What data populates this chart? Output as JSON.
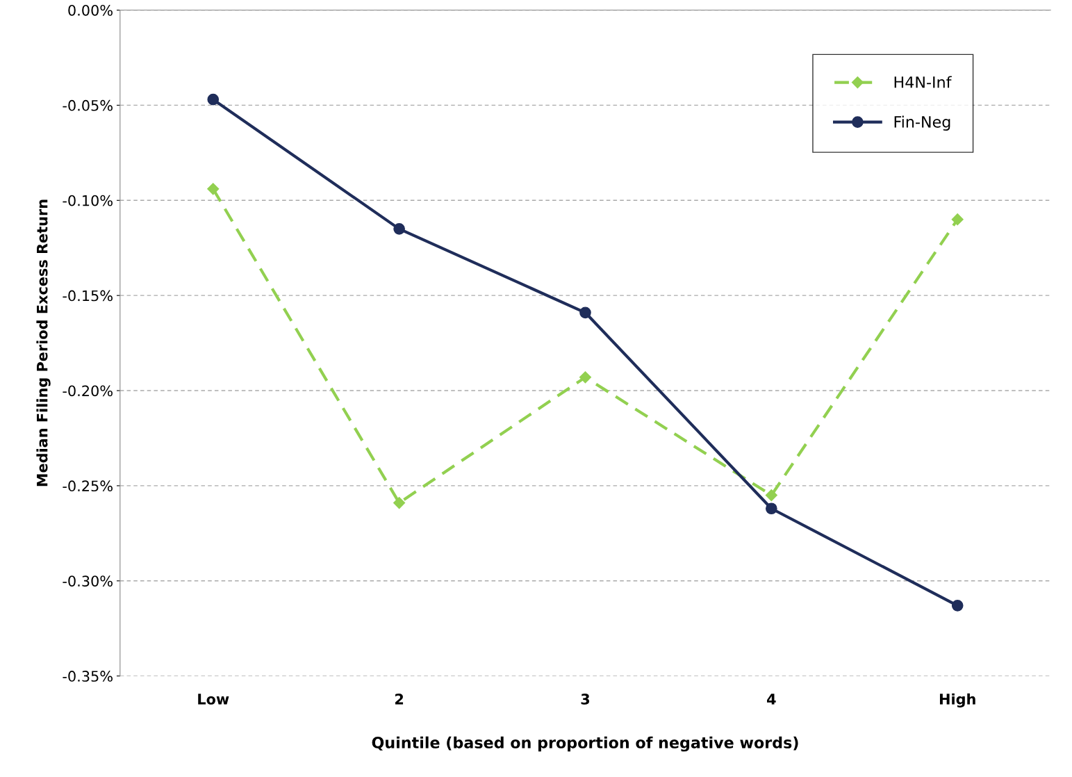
{
  "chart_data": {
    "type": "line",
    "xlabel": "Quintile (based on proportion of negative words)",
    "ylabel": "Median Filing Period Excess Return",
    "categories": [
      "Low",
      "2",
      "3",
      "4",
      "High"
    ],
    "series": [
      {
        "name": "H4N-Inf",
        "color": "#92d050",
        "values": [
          -0.094,
          -0.259,
          -0.193,
          -0.255,
          -0.11
        ],
        "marker": "diamond",
        "line_style": "dashed"
      },
      {
        "name": "Fin-Neg",
        "color": "#1f2d5a",
        "values": [
          -0.047,
          -0.115,
          -0.159,
          -0.262,
          -0.313
        ],
        "marker": "circle",
        "line_style": "solid"
      }
    ],
    "ylim": [
      -0.35,
      0.0
    ],
    "yticks": [
      {
        "value": 0.0,
        "label": "0.00%"
      },
      {
        "value": -0.05,
        "label": "-0.05%"
      },
      {
        "value": -0.1,
        "label": "-0.10%"
      },
      {
        "value": -0.15,
        "label": "-0.15%"
      },
      {
        "value": -0.2,
        "label": "-0.20%"
      },
      {
        "value": -0.25,
        "label": "-0.25%"
      },
      {
        "value": -0.3,
        "label": "-0.30%"
      },
      {
        "value": -0.35,
        "label": "-0.35%"
      }
    ],
    "grid": "y",
    "legend": "top right"
  }
}
